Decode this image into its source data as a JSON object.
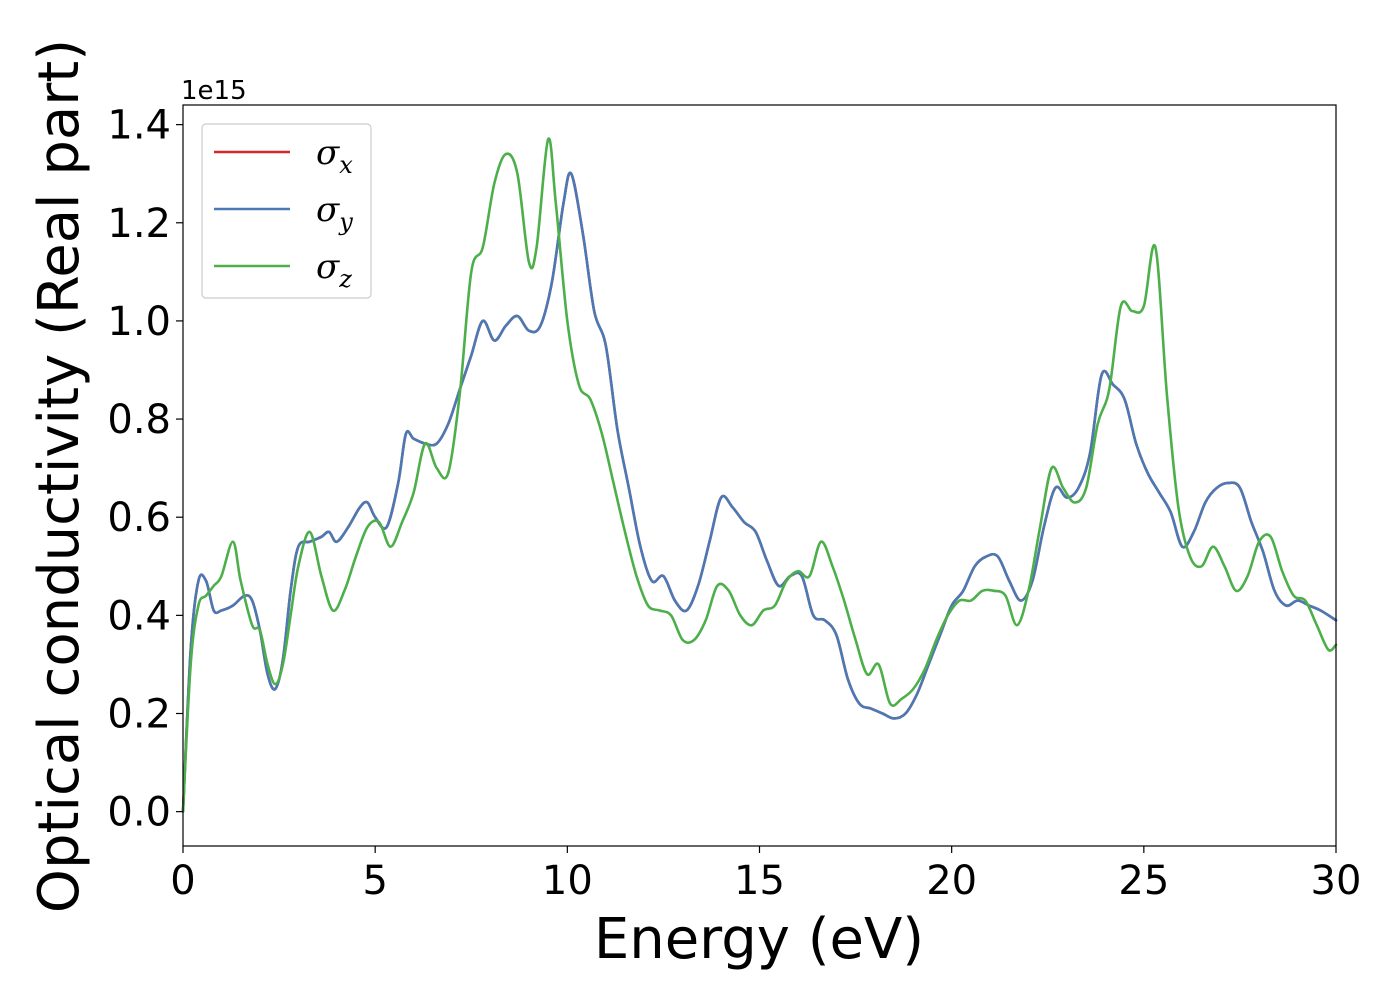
{
  "chart_data": {
    "type": "line",
    "xlabel": "Energy (eV)",
    "ylabel": "Optical conductivity (Real part)",
    "y_offset_text": "1e15",
    "y_scale": 1000000000000000.0,
    "xlim": [
      0,
      30
    ],
    "ylim": [
      -0.07,
      1.44
    ],
    "xticks": [
      0,
      5,
      10,
      15,
      20,
      25,
      30
    ],
    "xtick_labels": [
      "0",
      "5",
      "10",
      "15",
      "20",
      "25",
      "30"
    ],
    "yticks": [
      0.0,
      0.2,
      0.4,
      0.6,
      0.8,
      1.0,
      1.2,
      1.4
    ],
    "ytick_labels": [
      "0.0",
      "0.2",
      "0.4",
      "0.6",
      "0.8",
      "1.0",
      "1.2",
      "1.4"
    ],
    "grid": false,
    "legend_position": "upper-left",
    "series": [
      {
        "name": "σx",
        "legend_base": "σ",
        "legend_sub": "x",
        "color": "#d62728",
        "x": [
          0.0,
          0.2,
          0.4,
          0.6,
          0.8,
          1.0,
          1.3,
          1.6,
          1.8,
          2.0,
          2.2,
          2.4,
          2.6,
          2.8,
          3.0,
          3.3,
          3.6,
          3.8,
          4.0,
          4.3,
          4.6,
          4.8,
          5.0,
          5.3,
          5.6,
          5.8,
          6.0,
          6.3,
          6.6,
          6.9,
          7.2,
          7.5,
          7.8,
          8.1,
          8.4,
          8.7,
          9.0,
          9.3,
          9.6,
          9.9,
          10.1,
          10.4,
          10.7,
          11.0,
          11.3,
          11.6,
          11.9,
          12.2,
          12.5,
          12.8,
          13.1,
          13.4,
          13.7,
          14.0,
          14.3,
          14.6,
          14.9,
          15.2,
          15.5,
          15.8,
          16.1,
          16.4,
          16.7,
          17.0,
          17.3,
          17.6,
          17.9,
          18.2,
          18.5,
          18.8,
          19.1,
          19.4,
          19.7,
          20.0,
          20.3,
          20.6,
          20.9,
          21.2,
          21.5,
          21.8,
          22.1,
          22.4,
          22.7,
          23.0,
          23.3,
          23.6,
          23.9,
          24.2,
          24.5,
          24.8,
          25.1,
          25.4,
          25.7,
          26.0,
          26.3,
          26.6,
          26.9,
          27.2,
          27.5,
          27.8,
          28.1,
          28.4,
          28.7,
          29.0,
          29.3,
          29.6,
          30.0
        ],
        "values": [
          0.0,
          0.33,
          0.47,
          0.47,
          0.41,
          0.41,
          0.42,
          0.44,
          0.43,
          0.37,
          0.28,
          0.25,
          0.31,
          0.45,
          0.54,
          0.55,
          0.56,
          0.57,
          0.55,
          0.58,
          0.62,
          0.63,
          0.6,
          0.58,
          0.67,
          0.77,
          0.76,
          0.75,
          0.75,
          0.79,
          0.86,
          0.93,
          1.0,
          0.96,
          0.99,
          1.01,
          0.98,
          0.99,
          1.08,
          1.24,
          1.3,
          1.18,
          1.02,
          0.95,
          0.78,
          0.66,
          0.54,
          0.47,
          0.48,
          0.43,
          0.41,
          0.46,
          0.55,
          0.64,
          0.62,
          0.59,
          0.57,
          0.51,
          0.46,
          0.48,
          0.48,
          0.4,
          0.39,
          0.36,
          0.27,
          0.22,
          0.21,
          0.2,
          0.19,
          0.2,
          0.24,
          0.3,
          0.36,
          0.42,
          0.45,
          0.5,
          0.52,
          0.52,
          0.47,
          0.43,
          0.47,
          0.58,
          0.66,
          0.64,
          0.66,
          0.73,
          0.89,
          0.87,
          0.84,
          0.75,
          0.69,
          0.65,
          0.61,
          0.54,
          0.57,
          0.63,
          0.66,
          0.67,
          0.66,
          0.59,
          0.53,
          0.45,
          0.42,
          0.43,
          0.42,
          0.41,
          0.39
        ]
      },
      {
        "name": "σy",
        "legend_base": "σ",
        "legend_sub": "y",
        "color": "#4a7ab5",
        "x": [
          0.0,
          0.2,
          0.4,
          0.6,
          0.8,
          1.0,
          1.3,
          1.6,
          1.8,
          2.0,
          2.2,
          2.4,
          2.6,
          2.8,
          3.0,
          3.3,
          3.6,
          3.8,
          4.0,
          4.3,
          4.6,
          4.8,
          5.0,
          5.3,
          5.6,
          5.8,
          6.0,
          6.3,
          6.6,
          6.9,
          7.2,
          7.5,
          7.8,
          8.1,
          8.4,
          8.7,
          9.0,
          9.3,
          9.6,
          9.9,
          10.1,
          10.4,
          10.7,
          11.0,
          11.3,
          11.6,
          11.9,
          12.2,
          12.5,
          12.8,
          13.1,
          13.4,
          13.7,
          14.0,
          14.3,
          14.6,
          14.9,
          15.2,
          15.5,
          15.8,
          16.1,
          16.4,
          16.7,
          17.0,
          17.3,
          17.6,
          17.9,
          18.2,
          18.5,
          18.8,
          19.1,
          19.4,
          19.7,
          20.0,
          20.3,
          20.6,
          20.9,
          21.2,
          21.5,
          21.8,
          22.1,
          22.4,
          22.7,
          23.0,
          23.3,
          23.6,
          23.9,
          24.2,
          24.5,
          24.8,
          25.1,
          25.4,
          25.7,
          26.0,
          26.3,
          26.6,
          26.9,
          27.2,
          27.5,
          27.8,
          28.1,
          28.4,
          28.7,
          29.0,
          29.3,
          29.6,
          30.0
        ],
        "values": [
          0.0,
          0.33,
          0.47,
          0.47,
          0.41,
          0.41,
          0.42,
          0.44,
          0.43,
          0.37,
          0.28,
          0.25,
          0.31,
          0.45,
          0.54,
          0.55,
          0.56,
          0.57,
          0.55,
          0.58,
          0.62,
          0.63,
          0.6,
          0.58,
          0.67,
          0.77,
          0.76,
          0.75,
          0.75,
          0.79,
          0.86,
          0.93,
          1.0,
          0.96,
          0.99,
          1.01,
          0.98,
          0.99,
          1.08,
          1.24,
          1.3,
          1.18,
          1.02,
          0.95,
          0.78,
          0.66,
          0.54,
          0.47,
          0.48,
          0.43,
          0.41,
          0.46,
          0.55,
          0.64,
          0.62,
          0.59,
          0.57,
          0.51,
          0.46,
          0.48,
          0.48,
          0.4,
          0.39,
          0.36,
          0.27,
          0.22,
          0.21,
          0.2,
          0.19,
          0.2,
          0.24,
          0.3,
          0.36,
          0.42,
          0.45,
          0.5,
          0.52,
          0.52,
          0.47,
          0.43,
          0.47,
          0.58,
          0.66,
          0.64,
          0.66,
          0.73,
          0.89,
          0.87,
          0.84,
          0.75,
          0.69,
          0.65,
          0.61,
          0.54,
          0.57,
          0.63,
          0.66,
          0.67,
          0.66,
          0.59,
          0.53,
          0.45,
          0.42,
          0.43,
          0.42,
          0.41,
          0.39
        ]
      },
      {
        "name": "σz",
        "legend_base": "σ",
        "legend_sub": "z",
        "color": "#4daf4a",
        "x": [
          0.0,
          0.2,
          0.4,
          0.6,
          0.8,
          1.0,
          1.3,
          1.5,
          1.8,
          2.0,
          2.2,
          2.4,
          2.6,
          2.8,
          3.0,
          3.3,
          3.6,
          3.9,
          4.2,
          4.5,
          4.8,
          5.1,
          5.4,
          5.7,
          6.0,
          6.3,
          6.6,
          6.9,
          7.2,
          7.5,
          7.8,
          8.1,
          8.4,
          8.7,
          9.0,
          9.2,
          9.5,
          9.7,
          10.0,
          10.3,
          10.6,
          10.9,
          11.2,
          11.5,
          11.8,
          12.1,
          12.4,
          12.7,
          13.0,
          13.3,
          13.6,
          13.9,
          14.2,
          14.5,
          14.8,
          15.1,
          15.4,
          15.7,
          16.0,
          16.3,
          16.6,
          16.9,
          17.2,
          17.5,
          17.8,
          18.1,
          18.4,
          18.7,
          19.0,
          19.3,
          19.6,
          19.9,
          20.2,
          20.5,
          20.8,
          21.1,
          21.4,
          21.7,
          22.0,
          22.3,
          22.6,
          22.9,
          23.2,
          23.5,
          23.8,
          24.1,
          24.4,
          24.7,
          25.0,
          25.3,
          25.6,
          25.9,
          26.2,
          26.5,
          26.8,
          27.1,
          27.4,
          27.7,
          28.0,
          28.3,
          28.6,
          28.9,
          29.2,
          29.5,
          29.8,
          30.0
        ],
        "values": [
          0.0,
          0.3,
          0.42,
          0.44,
          0.46,
          0.48,
          0.55,
          0.47,
          0.38,
          0.37,
          0.3,
          0.26,
          0.3,
          0.4,
          0.5,
          0.57,
          0.48,
          0.41,
          0.45,
          0.52,
          0.58,
          0.59,
          0.54,
          0.59,
          0.65,
          0.75,
          0.7,
          0.69,
          0.85,
          1.1,
          1.15,
          1.28,
          1.34,
          1.3,
          1.12,
          1.15,
          1.37,
          1.24,
          1.0,
          0.87,
          0.84,
          0.77,
          0.67,
          0.57,
          0.48,
          0.42,
          0.41,
          0.4,
          0.35,
          0.35,
          0.39,
          0.46,
          0.45,
          0.4,
          0.38,
          0.41,
          0.42,
          0.47,
          0.49,
          0.48,
          0.55,
          0.5,
          0.43,
          0.35,
          0.28,
          0.3,
          0.22,
          0.23,
          0.25,
          0.29,
          0.35,
          0.4,
          0.43,
          0.43,
          0.45,
          0.45,
          0.44,
          0.38,
          0.45,
          0.58,
          0.7,
          0.66,
          0.63,
          0.66,
          0.79,
          0.86,
          1.03,
          1.02,
          1.03,
          1.15,
          0.85,
          0.62,
          0.52,
          0.5,
          0.54,
          0.5,
          0.45,
          0.48,
          0.55,
          0.56,
          0.49,
          0.44,
          0.43,
          0.38,
          0.33,
          0.34
        ]
      }
    ]
  }
}
